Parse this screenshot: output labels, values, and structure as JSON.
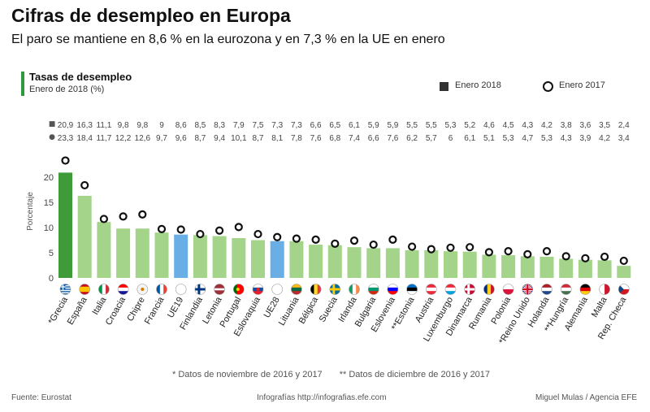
{
  "header": {
    "title": "Cifras de desempleo en Europa",
    "subtitle": "El paro se mantiene en 8,6 % en la eurozona y en 7,3 % en la UE en enero"
  },
  "panel": {
    "title": "Tasas de desempleo",
    "subtitle": "Enero de 2018 (%)"
  },
  "legend": {
    "series_2018": "Enero 2018",
    "series_2017": "Enero 2017"
  },
  "row_markers": {
    "2018": "■",
    "2017": "●"
  },
  "footer": {
    "note_1": "* Datos de noviembre de 2016 y 2017",
    "note_2": "** Datos de diciembre de 2016 y 2017",
    "source": "Fuente: Eurostat",
    "site": "Infografías http://infografias.efe.com",
    "credit": "Miguel Mulas / Agencia EFE"
  },
  "colors": {
    "highlight": "#3f9b3a",
    "bar": "#a3d48a",
    "aggregate": "#6aaee6",
    "marker_stroke": "#111111"
  },
  "chart_data": {
    "type": "bar",
    "ylabel": "Porcentaje",
    "ylim": [
      0,
      25
    ],
    "yticks": [
      0,
      5,
      10,
      15,
      20
    ],
    "categories": [
      "*Grecia",
      "España",
      "Italia",
      "Croacia",
      "Chipre",
      "Francia",
      "UE19",
      "Finlandia",
      "Letonia",
      "Portugal",
      "Eslovaquia",
      "UE28",
      "Lituania",
      "Bélgica",
      "Suecia",
      "Irlanda",
      "Bulgaria",
      "Eslovenia",
      "**Estonia",
      "Austria",
      "Luxemburgo",
      "Dinamarca",
      "Rumania",
      "Polonia",
      "*Reino Unido",
      "Holanda",
      "**Hungría",
      "Alemania",
      "Malta",
      "Rep. Checa"
    ],
    "labels_2018": [
      "20,9",
      "16,3",
      "11,1",
      "9,8",
      "9,8",
      "9",
      "8,6",
      "8,5",
      "8,3",
      "7,9",
      "7,5",
      "7,3",
      "7,3",
      "6,6",
      "6,5",
      "6,1",
      "5,9",
      "5,9",
      "5,5",
      "5,5",
      "5,3",
      "5,2",
      "4,6",
      "4,5",
      "4,3",
      "4,2",
      "3,8",
      "3,6",
      "3,5",
      "2,4"
    ],
    "labels_2017": [
      "23,3",
      "18,4",
      "11,7",
      "12,2",
      "12,6",
      "9,7",
      "9,6",
      "8,7",
      "9,4",
      "10,1",
      "8,7",
      "8,1",
      "7,8",
      "7,6",
      "6,8",
      "7,4",
      "6,6",
      "7,6",
      "6,2",
      "5,7",
      "6",
      "6,1",
      "5,1",
      "5,3",
      "4,7",
      "5,3",
      "4,3",
      "3,9",
      "4,2",
      "3,4"
    ],
    "series": [
      {
        "name": "Enero 2018",
        "values": [
          20.9,
          16.3,
          11.1,
          9.8,
          9.8,
          9,
          8.6,
          8.5,
          8.3,
          7.9,
          7.5,
          7.3,
          7.3,
          6.6,
          6.5,
          6.1,
          5.9,
          5.9,
          5.5,
          5.5,
          5.3,
          5.2,
          4.6,
          4.5,
          4.3,
          4.2,
          3.8,
          3.6,
          3.5,
          2.4
        ]
      },
      {
        "name": "Enero 2017",
        "values": [
          23.3,
          18.4,
          11.7,
          12.2,
          12.6,
          9.7,
          9.6,
          8.7,
          9.4,
          10.1,
          8.7,
          8.1,
          7.8,
          7.6,
          6.8,
          7.4,
          6.6,
          7.6,
          6.2,
          5.7,
          6,
          6.1,
          5.1,
          5.3,
          4.7,
          5.3,
          4.3,
          3.9,
          4.2,
          3.4
        ]
      }
    ],
    "bar_roles": [
      "highlight",
      "bar",
      "bar",
      "bar",
      "bar",
      "bar",
      "aggregate",
      "bar",
      "bar",
      "bar",
      "bar",
      "aggregate",
      "bar",
      "bar",
      "bar",
      "bar",
      "bar",
      "bar",
      "bar",
      "bar",
      "bar",
      "bar",
      "bar",
      "bar",
      "bar",
      "bar",
      "bar",
      "bar",
      "bar",
      "bar"
    ],
    "flags": [
      {
        "stripes": "grecia"
      },
      {
        "stripes": "h",
        "c": [
          "#c60b1e",
          "#ffc400",
          "#c60b1e"
        ],
        "w": [
          1,
          2,
          1
        ]
      },
      {
        "stripes": "v",
        "c": [
          "#009246",
          "#ffffff",
          "#ce2b37"
        ]
      },
      {
        "stripes": "h",
        "c": [
          "#ff0000",
          "#ffffff",
          "#171796"
        ]
      },
      {
        "stripes": "solid",
        "c": [
          "#f4f4f4"
        ],
        "dot": "#d57800"
      },
      {
        "stripes": "v",
        "c": [
          "#0055a4",
          "#ffffff",
          "#ef4135"
        ]
      },
      {
        "stripes": "solid",
        "c": [
          "#ffffff"
        ]
      },
      {
        "stripes": "cross",
        "c": [
          "#ffffff",
          "#003580"
        ]
      },
      {
        "stripes": "h",
        "c": [
          "#9e3039",
          "#ffffff",
          "#9e3039"
        ],
        "w": [
          2,
          1,
          2
        ]
      },
      {
        "stripes": "v",
        "c": [
          "#006600",
          "#ff0000",
          "#ff0000"
        ],
        "dot": "#ffcc00"
      },
      {
        "stripes": "h",
        "c": [
          "#ffffff",
          "#0b4ea2",
          "#ee1c25"
        ],
        "dot": "#ee1c25"
      },
      {
        "stripes": "solid",
        "c": [
          "#ffffff"
        ]
      },
      {
        "stripes": "h",
        "c": [
          "#fdb913",
          "#006a44",
          "#c1272d"
        ]
      },
      {
        "stripes": "v",
        "c": [
          "#000000",
          "#fdda24",
          "#ef3340"
        ]
      },
      {
        "stripes": "cross",
        "c": [
          "#006aa7",
          "#fecc00"
        ]
      },
      {
        "stripes": "v",
        "c": [
          "#169b62",
          "#ffffff",
          "#ff883e"
        ]
      },
      {
        "stripes": "h",
        "c": [
          "#ffffff",
          "#00966e",
          "#d62612"
        ]
      },
      {
        "stripes": "h",
        "c": [
          "#ffffff",
          "#0000ff",
          "#ff0000"
        ]
      },
      {
        "stripes": "h",
        "c": [
          "#0072ce",
          "#000000",
          "#ffffff"
        ]
      },
      {
        "stripes": "h",
        "c": [
          "#ed2939",
          "#ffffff",
          "#ed2939"
        ]
      },
      {
        "stripes": "h",
        "c": [
          "#ed2939",
          "#ffffff",
          "#00a1de"
        ]
      },
      {
        "stripes": "cross",
        "c": [
          "#c60c30",
          "#ffffff"
        ]
      },
      {
        "stripes": "v",
        "c": [
          "#002b7f",
          "#fcd116",
          "#ce1126"
        ]
      },
      {
        "stripes": "h",
        "c": [
          "#ffffff",
          "#dc143c"
        ]
      },
      {
        "stripes": "uk"
      },
      {
        "stripes": "h",
        "c": [
          "#ae1c28",
          "#ffffff",
          "#21468b"
        ]
      },
      {
        "stripes": "h",
        "c": [
          "#ce2939",
          "#ffffff",
          "#477050"
        ]
      },
      {
        "stripes": "h",
        "c": [
          "#000000",
          "#dd0000",
          "#ffce00"
        ]
      },
      {
        "stripes": "v",
        "c": [
          "#ffffff",
          "#cf142b"
        ]
      },
      {
        "stripes": "czech"
      }
    ]
  }
}
